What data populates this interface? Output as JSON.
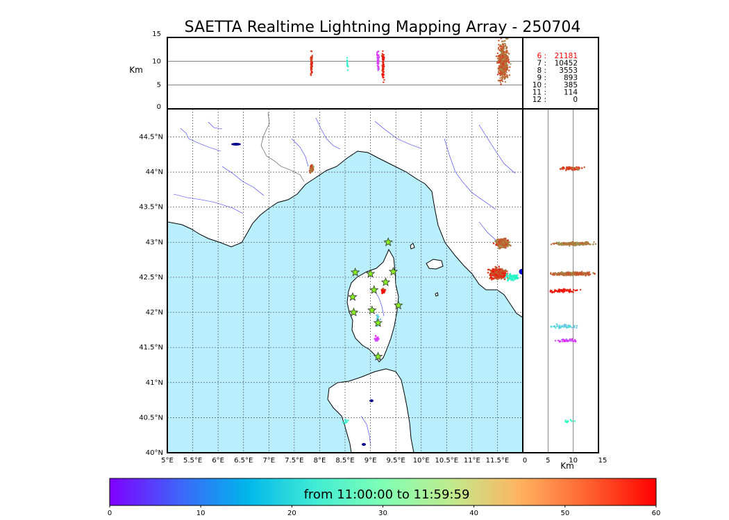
{
  "title": "SAETTA Realtime Lightning Mapping Array - 250704",
  "alt_panel": {
    "ylabel": "Km",
    "yticks": [
      "0",
      "5",
      "10",
      "15"
    ],
    "ylim": [
      0,
      15
    ],
    "ref_lines_km": [
      5,
      10
    ]
  },
  "side_panel": {
    "xlabel": "Km",
    "xticks": [
      "0",
      "5",
      "10",
      "15"
    ],
    "xlim": [
      0,
      15
    ],
    "ref_lines_km": [
      5,
      10
    ]
  },
  "map": {
    "lon_ticks": [
      "5°E",
      "5.5°E",
      "6°E",
      "6.5°E",
      "7°E",
      "7.5°E",
      "8°E",
      "8.5°E",
      "9°E",
      "9.5°E",
      "10°E",
      "10.5°E",
      "11°E",
      "11.5°E"
    ],
    "lat_ticks": [
      "40°N",
      "40.5°N",
      "41°N",
      "41.5°N",
      "42°N",
      "42.5°N",
      "43°N",
      "43.5°N",
      "44°N",
      "44.5°N"
    ],
    "lon_range": [
      5.0,
      12.0
    ],
    "lat_range": [
      40.0,
      44.9
    ],
    "grid": true,
    "sea_color": "#b9eefc",
    "land_color": "#ffffff",
    "river_color": "#3333ff"
  },
  "stats": [
    {
      "label": "6  :",
      "count": "21181",
      "color": "#ff0000"
    },
    {
      "label": "7  :",
      "count": "10452",
      "color": "#000000"
    },
    {
      "label": "8  :",
      "count": "3553",
      "color": "#000000"
    },
    {
      "label": "9  :",
      "count": "893",
      "color": "#000000"
    },
    {
      "label": "10  :",
      "count": "385",
      "color": "#000000"
    },
    {
      "label": "11  :",
      "count": "114",
      "color": "#000000"
    },
    {
      "label": "12  :",
      "count": "0",
      "color": "#000000"
    }
  ],
  "colorbar": {
    "label": "from 11:00:00 to 11:59:59",
    "ticks": [
      "0",
      "10",
      "20",
      "30",
      "40",
      "50",
      "60"
    ],
    "range": [
      0,
      60
    ]
  },
  "chart_data": {
    "type": "scatter",
    "title": "SAETTA Realtime Lightning Mapping Array - 250704",
    "color_scale": {
      "min": 0,
      "max": 60,
      "unit": "minutes after 11:00:00",
      "colormap": "rainbow"
    },
    "stations": [
      {
        "lon": 9.35,
        "lat": 43.0
      },
      {
        "lon": 8.7,
        "lat": 42.57
      },
      {
        "lon": 9.0,
        "lat": 42.55
      },
      {
        "lon": 9.45,
        "lat": 42.58
      },
      {
        "lon": 9.3,
        "lat": 42.43
      },
      {
        "lon": 9.07,
        "lat": 42.32
      },
      {
        "lon": 8.65,
        "lat": 42.22
      },
      {
        "lon": 9.55,
        "lat": 42.1
      },
      {
        "lon": 9.03,
        "lat": 42.03
      },
      {
        "lon": 8.67,
        "lat": 42.0
      },
      {
        "lon": 9.15,
        "lat": 41.85
      },
      {
        "lon": 9.15,
        "lat": 41.37
      }
    ],
    "clusters": [
      {
        "lon": 7.84,
        "lat": 44.05,
        "lon_spread": 0.04,
        "lat_spread": 0.04,
        "alt_km": 10.0,
        "alt_spread": 2.0,
        "time_min": 52,
        "n": 60
      },
      {
        "lon": 9.25,
        "lat": 42.31,
        "lon_spread": 0.03,
        "lat_spread": 0.03,
        "alt_km": 10.0,
        "alt_spread": 1.5,
        "time_min": 58,
        "n": 40
      },
      {
        "lon": 9.15,
        "lat": 41.88,
        "lon_spread": 0.03,
        "lat_spread": 0.07,
        "alt_km": 8.0,
        "alt_spread": 2.0,
        "time_min": 18,
        "n": 25
      },
      {
        "lon": 9.13,
        "lat": 41.62,
        "lon_spread": 0.03,
        "lat_spread": 0.03,
        "alt_km": 9.0,
        "alt_spread": 1.5,
        "time_min": 5,
        "n": 20
      },
      {
        "lon": 8.5,
        "lat": 40.45,
        "lon_spread": 0.05,
        "lat_spread": 0.03,
        "alt_km": 9.0,
        "alt_spread": 1.0,
        "time_min": 25,
        "n": 8
      },
      {
        "lon": 11.6,
        "lat": 42.98,
        "lon_spread": 0.12,
        "lat_spread": 0.05,
        "alt_km": 10.0,
        "alt_spread": 2.5,
        "time_min": 52,
        "n": 260
      },
      {
        "lon": 11.52,
        "lat": 42.55,
        "lon_spread": 0.14,
        "lat_spread": 0.06,
        "alt_km": 9.0,
        "alt_spread": 3.0,
        "time_min": 55,
        "n": 340
      },
      {
        "lon": 11.8,
        "lat": 42.5,
        "lon_spread": 0.1,
        "lat_spread": 0.04,
        "alt_km": 11.0,
        "alt_spread": 2.5,
        "time_min": 25,
        "n": 60
      },
      {
        "lon": 11.98,
        "lat": 42.58,
        "lon_spread": 0.02,
        "lat_spread": 0.02,
        "alt_km": 9.0,
        "alt_spread": 1.0,
        "time_min": 8,
        "n": 30
      }
    ],
    "side_view_bands": [
      {
        "lat": 44.05,
        "alt_km": 9.5,
        "alt_spread": 2.5,
        "time_min": 55,
        "n": 60
      },
      {
        "lat": 42.98,
        "alt_km": 10.0,
        "alt_spread": 3.5,
        "time_min": 50,
        "n": 280
      },
      {
        "lat": 42.55,
        "alt_km": 10.0,
        "alt_spread": 3.8,
        "time_min": 52,
        "n": 380
      },
      {
        "lat": 42.31,
        "alt_km": 8.0,
        "alt_spread": 3.0,
        "time_min": 58,
        "n": 80
      },
      {
        "lat": 41.8,
        "alt_km": 8.0,
        "alt_spread": 3.0,
        "time_min": 18,
        "n": 60
      },
      {
        "lat": 41.6,
        "alt_km": 9.0,
        "alt_spread": 2.0,
        "time_min": 5,
        "n": 40
      },
      {
        "lat": 40.45,
        "alt_km": 9.0,
        "alt_spread": 1.5,
        "time_min": 28,
        "n": 8
      }
    ],
    "top_view_columns": [
      {
        "lon": 7.84,
        "alt_km": 9.5,
        "alt_spread": 2.2,
        "time_min": 56,
        "n": 80
      },
      {
        "lon": 8.55,
        "alt_km": 9.5,
        "alt_spread": 1.5,
        "time_min": 25,
        "n": 10
      },
      {
        "lon": 9.15,
        "alt_km": 10.0,
        "alt_spread": 1.8,
        "time_min": 5,
        "n": 50
      },
      {
        "lon": 9.25,
        "alt_km": 9.0,
        "alt_spread": 2.6,
        "time_min": 58,
        "n": 90
      },
      {
        "lon": 11.62,
        "alt_km": 10.0,
        "alt_spread": 3.2,
        "time_min": 52,
        "n": 500
      }
    ]
  }
}
